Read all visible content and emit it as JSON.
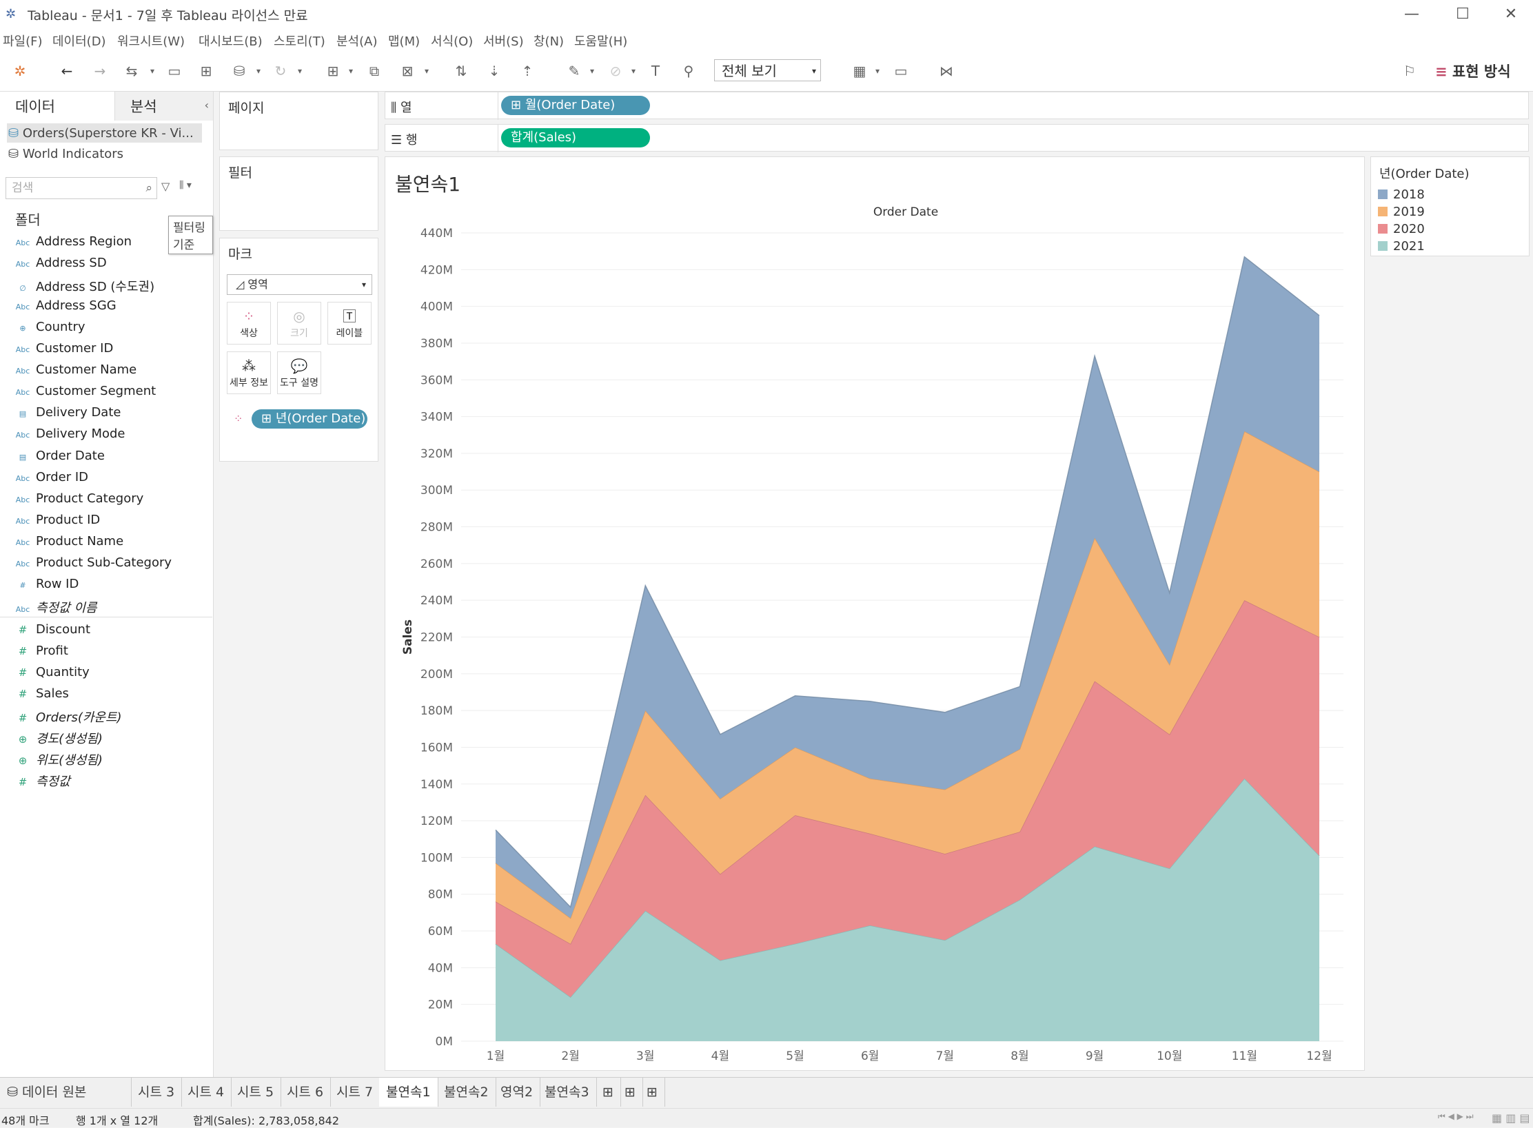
{
  "window": {
    "title": "Tableau - 문서1 - 7일 후 Tableau 라이선스 만료",
    "minimize": "—",
    "maximize": "☐",
    "close": "✕"
  },
  "menu": [
    "파일(F)",
    "데이터(D)",
    "워크시트(W)",
    "대시보드(B)",
    "스토리(T)",
    "분석(A)",
    "맵(M)",
    "서식(O)",
    "서버(S)",
    "창(N)",
    "도움말(H)"
  ],
  "toolbar": {
    "view_select": "전체 보기",
    "show_me": "표현 방식"
  },
  "data_pane": {
    "tab_data": "데이터",
    "tab_analysis": "분석",
    "sources": [
      "Orders(Superstore KR - Vi...",
      "World Indicators"
    ],
    "search_placeholder": "검색",
    "tooltip": "필터링 기준",
    "folder_label": "폴더",
    "dimensions": [
      {
        "icon": "Abc",
        "name": "Address Region"
      },
      {
        "icon": "Abc",
        "name": "Address SD"
      },
      {
        "icon": "∅",
        "name": "Address SD (수도권)"
      },
      {
        "icon": "Abc",
        "name": "Address SGG"
      },
      {
        "icon": "⊕",
        "name": "Country"
      },
      {
        "icon": "Abc",
        "name": "Customer ID"
      },
      {
        "icon": "Abc",
        "name": "Customer Name"
      },
      {
        "icon": "Abc",
        "name": "Customer Segment"
      },
      {
        "icon": "▤",
        "name": "Delivery Date"
      },
      {
        "icon": "Abc",
        "name": "Delivery Mode"
      },
      {
        "icon": "▤",
        "name": "Order Date"
      },
      {
        "icon": "Abc",
        "name": "Order ID"
      },
      {
        "icon": "Abc",
        "name": "Product Category"
      },
      {
        "icon": "Abc",
        "name": "Product ID"
      },
      {
        "icon": "Abc",
        "name": "Product Name"
      },
      {
        "icon": "Abc",
        "name": "Product Sub-Category"
      },
      {
        "icon": "#",
        "name": "Row ID"
      },
      {
        "icon": "Abc",
        "name": "측정값 이름"
      }
    ],
    "measures": [
      {
        "icon": "#",
        "name": "Discount"
      },
      {
        "icon": "#",
        "name": "Profit"
      },
      {
        "icon": "#",
        "name": "Quantity"
      },
      {
        "icon": "#",
        "name": "Sales"
      },
      {
        "icon": "#",
        "name": "Orders(카운트)"
      },
      {
        "icon": "⊕",
        "name": "경도(생성됨)"
      },
      {
        "icon": "⊕",
        "name": "위도(생성됨)"
      },
      {
        "icon": "#",
        "name": "측정값"
      }
    ]
  },
  "cards": {
    "pages": "페이지",
    "filters": "필터",
    "marks": "마크",
    "mark_type": "영역",
    "mark_buttons": [
      "색상",
      "크기",
      "레이블",
      "세부 정보",
      "도구 설명"
    ],
    "color_pill": "년(Order Date)"
  },
  "shelves": {
    "columns_label": "열",
    "rows_label": "행",
    "columns_pill": "월(Order Date)",
    "rows_pill": "합계(Sales)"
  },
  "sheet": {
    "title": "불연속1"
  },
  "legend": {
    "title": "년(Order Date)",
    "items": [
      {
        "label": "2018",
        "color": "#8da8c7"
      },
      {
        "label": "2019",
        "color": "#f5b475"
      },
      {
        "label": "2020",
        "color": "#ea8c8f"
      },
      {
        "label": "2021",
        "color": "#a3d0cc"
      }
    ]
  },
  "chart_data": {
    "type": "area",
    "stacked": true,
    "title": "Order Date",
    "xlabel": "",
    "ylabel": "Sales",
    "ylim": [
      0,
      440000000
    ],
    "yticks": [
      "0M",
      "20M",
      "40M",
      "60M",
      "80M",
      "100M",
      "120M",
      "140M",
      "160M",
      "180M",
      "200M",
      "220M",
      "240M",
      "260M",
      "280M",
      "300M",
      "320M",
      "340M",
      "360M",
      "380M",
      "400M",
      "420M",
      "440M"
    ],
    "categories": [
      "1월",
      "2월",
      "3월",
      "4월",
      "5월",
      "6월",
      "7월",
      "8월",
      "9월",
      "10월",
      "11월",
      "12월"
    ],
    "series": [
      {
        "name": "2021",
        "color": "#a3d0cc",
        "values": [
          53000000,
          24000000,
          71000000,
          44000000,
          53000000,
          63000000,
          55000000,
          77000000,
          106000000,
          94000000,
          143000000,
          101000000
        ]
      },
      {
        "name": "2020",
        "color": "#ea8c8f",
        "values": [
          23000000,
          29000000,
          63000000,
          47000000,
          70000000,
          50000000,
          47000000,
          37000000,
          90000000,
          73000000,
          97000000,
          119000000
        ]
      },
      {
        "name": "2019",
        "color": "#f5b475",
        "values": [
          21000000,
          14000000,
          46000000,
          41000000,
          37000000,
          30000000,
          35000000,
          45000000,
          78000000,
          38000000,
          92000000,
          90000000
        ]
      },
      {
        "name": "2018",
        "color": "#8da8c7",
        "values": [
          18000000,
          6000000,
          68000000,
          35000000,
          28000000,
          42000000,
          42000000,
          34000000,
          99000000,
          39000000,
          95000000,
          85000000
        ]
      }
    ]
  },
  "tabs": {
    "data_source": "데이터 원본",
    "sheets": [
      "시트 3",
      "시트 4",
      "시트 5",
      "시트 6",
      "시트 7",
      "불연속1",
      "불연속2",
      "영역2",
      "불연속3"
    ],
    "active": "불연속1"
  },
  "status": {
    "marks": "48개 마크",
    "rows_cols": "행 1개 x 열 12개",
    "sum": "합계(Sales): 2,783,058,842"
  }
}
